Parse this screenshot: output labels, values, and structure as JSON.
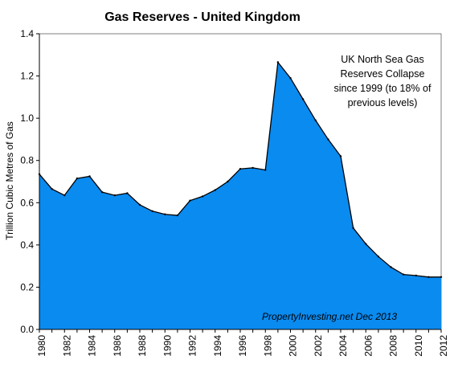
{
  "chart_data": {
    "type": "area",
    "title": "Gas Reserves - United Kingdom",
    "xlabel": "",
    "ylabel": "Trillion Cubic Metres of Gas",
    "ylim": [
      0,
      1.4
    ],
    "xlim": [
      1980,
      2012
    ],
    "yticks": [
      "0.0",
      "0.2",
      "0.4",
      "0.6",
      "0.8",
      "1.0",
      "1.2",
      "1.4"
    ],
    "xticks": [
      "1980",
      "1982",
      "1984",
      "1986",
      "1988",
      "1990",
      "1992",
      "1994",
      "1996",
      "1998",
      "2000",
      "2002",
      "2004",
      "2006",
      "2008",
      "2010",
      "2012"
    ],
    "grid": false,
    "color": "#0a8bf0",
    "annotation": [
      "UK North Sea Gas",
      "Reserves Collapse",
      "since 1999  (to 18% of",
      "previous levels)"
    ],
    "credit": "PropertyInvesting.net  Dec 2013",
    "x": [
      1980,
      1981,
      1982,
      1983,
      1984,
      1985,
      1986,
      1987,
      1988,
      1989,
      1990,
      1991,
      1992,
      1993,
      1994,
      1995,
      1996,
      1997,
      1998,
      1999,
      2000,
      2001,
      2002,
      2003,
      2004,
      2005,
      2006,
      2007,
      2008,
      2009,
      2010,
      2011,
      2012
    ],
    "values": [
      0.735,
      0.665,
      0.635,
      0.715,
      0.725,
      0.65,
      0.635,
      0.645,
      0.59,
      0.56,
      0.545,
      0.54,
      0.61,
      0.63,
      0.66,
      0.7,
      0.76,
      0.765,
      0.755,
      1.265,
      1.19,
      1.09,
      0.99,
      0.9,
      0.82,
      0.48,
      0.405,
      0.345,
      0.295,
      0.26,
      0.255,
      0.248,
      0.248
    ]
  }
}
